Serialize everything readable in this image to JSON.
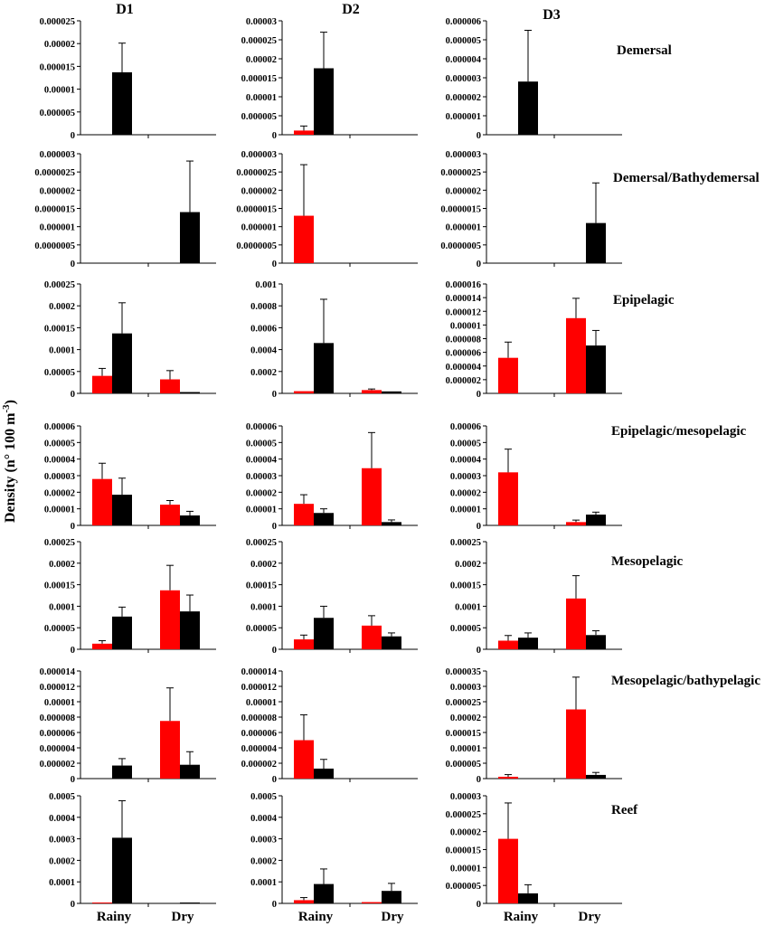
{
  "figure": {
    "ylabel_main": "Density (n° 100 m",
    "ylabel_sup": "-3",
    "ylabel_close": ")",
    "columns": [
      "D1",
      "D2",
      "D3"
    ],
    "categories": [
      "Rainy",
      "Dry"
    ],
    "rows": [
      "Demersal",
      "Demersal/Bathydemersal",
      "Epipelagic",
      "Epipelagic/mesopelagic",
      "Mesopelagic",
      "Mesopelagic/bathypelagic",
      "Reef"
    ],
    "colors": {
      "red": "#ff0000",
      "black": "#000000"
    }
  },
  "chart_data": [
    {
      "type": "bar",
      "row": "Demersal",
      "column": "D1",
      "categories": [
        "Rainy",
        "Dry"
      ],
      "series": [
        {
          "name": "red",
          "values": [
            0,
            0
          ],
          "errors": [
            0,
            0
          ]
        },
        {
          "name": "black",
          "values": [
            1.37e-05,
            0
          ],
          "errors": [
            6.4e-06,
            0
          ]
        }
      ],
      "ylim": [
        0,
        2.5e-05
      ],
      "yticks": [
        "0",
        "0.000005",
        "0.00001",
        "0.000015",
        "0.00002",
        "0.000025"
      ]
    },
    {
      "type": "bar",
      "row": "Demersal",
      "column": "D2",
      "categories": [
        "Rainy",
        "Dry"
      ],
      "series": [
        {
          "name": "red",
          "values": [
            1.1e-06,
            0
          ],
          "errors": [
            1.2e-06,
            0
          ]
        },
        {
          "name": "black",
          "values": [
            1.75e-05,
            0
          ],
          "errors": [
            9.5e-06,
            0
          ]
        }
      ],
      "ylim": [
        0,
        3e-05
      ],
      "yticks": [
        "0",
        "0.000005",
        "0.00001",
        "0.000015",
        "0.00002",
        "0.000025",
        "0.00003"
      ]
    },
    {
      "type": "bar",
      "row": "Demersal",
      "column": "D3",
      "categories": [
        "Rainy",
        "Dry"
      ],
      "series": [
        {
          "name": "red",
          "values": [
            0,
            0
          ],
          "errors": [
            0,
            0
          ]
        },
        {
          "name": "black",
          "values": [
            2.8e-06,
            0
          ],
          "errors": [
            2.7e-06,
            0
          ]
        }
      ],
      "ylim": [
        0,
        6e-06
      ],
      "yticks": [
        "0",
        "0.000001",
        "0.000002",
        "0.000003",
        "0.000004",
        "0.000005",
        "0.000006"
      ]
    },
    {
      "type": "bar",
      "row": "Demersal/Bathydemersal",
      "column": "D1",
      "categories": [
        "Rainy",
        "Dry"
      ],
      "series": [
        {
          "name": "red",
          "values": [
            0,
            0
          ],
          "errors": [
            0,
            0
          ]
        },
        {
          "name": "black",
          "values": [
            0,
            1.4e-06
          ],
          "errors": [
            0,
            1.4e-06
          ]
        }
      ],
      "ylim": [
        0,
        3e-06
      ],
      "yticks": [
        "0",
        "0.0000005",
        "0.000001",
        "0.0000015",
        "0.000002",
        "0.0000025",
        "0.000003"
      ]
    },
    {
      "type": "bar",
      "row": "Demersal/Bathydemersal",
      "column": "D2",
      "categories": [
        "Rainy",
        "Dry"
      ],
      "series": [
        {
          "name": "red",
          "values": [
            1.3e-06,
            0
          ],
          "errors": [
            1.4e-06,
            0
          ]
        },
        {
          "name": "black",
          "values": [
            0,
            0
          ],
          "errors": [
            0,
            0
          ]
        }
      ],
      "ylim": [
        0,
        3e-06
      ],
      "yticks": [
        "0",
        "0.0000005",
        "0.000001",
        "0.0000015",
        "0.000002",
        "0.0000025",
        "0.000003"
      ]
    },
    {
      "type": "bar",
      "row": "Demersal/Bathydemersal",
      "column": "D3",
      "categories": [
        "Rainy",
        "Dry"
      ],
      "series": [
        {
          "name": "red",
          "values": [
            0,
            0
          ],
          "errors": [
            0,
            0
          ]
        },
        {
          "name": "black",
          "values": [
            0,
            1.1e-06
          ],
          "errors": [
            0,
            1.1e-06
          ]
        }
      ],
      "ylim": [
        0,
        3e-06
      ],
      "yticks": [
        "0",
        "0.0000005",
        "0.000001",
        "0.0000015",
        "0.000002",
        "0.0000025",
        "0.000003"
      ]
    },
    {
      "type": "bar",
      "row": "Epipelagic",
      "column": "D1",
      "categories": [
        "Rainy",
        "Dry"
      ],
      "series": [
        {
          "name": "red",
          "values": [
            4e-05,
            3.2e-05
          ],
          "errors": [
            1.7e-05,
            2e-05
          ]
        },
        {
          "name": "black",
          "values": [
            0.000137,
            3e-06
          ],
          "errors": [
            7e-05,
            0
          ]
        }
      ],
      "ylim": [
        0,
        0.00025
      ],
      "yticks": [
        "0",
        "0.00005",
        "0.0001",
        "0.00015",
        "0.0002",
        "0.00025"
      ]
    },
    {
      "type": "bar",
      "row": "Epipelagic",
      "column": "D2",
      "categories": [
        "Rainy",
        "Dry"
      ],
      "series": [
        {
          "name": "red",
          "values": [
            2e-05,
            3e-05
          ],
          "errors": [
            0,
            1e-05
          ]
        },
        {
          "name": "black",
          "values": [
            0.00046,
            1.8e-05
          ],
          "errors": [
            0.0004,
            0
          ]
        }
      ],
      "ylim": [
        0,
        0.001
      ],
      "yticks": [
        "0",
        "0.0002",
        "0.0004",
        "0.0006",
        "0.0008",
        "0.001"
      ]
    },
    {
      "type": "bar",
      "row": "Epipelagic",
      "column": "D3",
      "categories": [
        "Rainy",
        "Dry"
      ],
      "series": [
        {
          "name": "red",
          "values": [
            5.2e-06,
            1.1e-05
          ],
          "errors": [
            2.3e-06,
            2.9e-06
          ]
        },
        {
          "name": "black",
          "values": [
            0,
            7e-06
          ],
          "errors": [
            0,
            2.2e-06
          ]
        }
      ],
      "ylim": [
        0,
        1.6e-05
      ],
      "yticks": [
        "0",
        "0.000002",
        "0.000004",
        "0.000006",
        "0.000008",
        "0.00001",
        "0.000012",
        "0.000014",
        "0.000016"
      ]
    },
    {
      "type": "bar",
      "row": "Epipelagic/mesopelagic",
      "column": "D1",
      "categories": [
        "Rainy",
        "Dry"
      ],
      "series": [
        {
          "name": "red",
          "values": [
            2.8e-05,
            1.25e-05
          ],
          "errors": [
            9.5e-06,
            2.5e-06
          ]
        },
        {
          "name": "black",
          "values": [
            1.85e-05,
            6e-06
          ],
          "errors": [
            1e-05,
            2.5e-06
          ]
        }
      ],
      "ylim": [
        0,
        6e-05
      ],
      "yticks": [
        "0",
        "0.00001",
        "0.00002",
        "0.00003",
        "0.00004",
        "0.00005",
        "0.00006"
      ]
    },
    {
      "type": "bar",
      "row": "Epipelagic/mesopelagic",
      "column": "D2",
      "categories": [
        "Rainy",
        "Dry"
      ],
      "series": [
        {
          "name": "red",
          "values": [
            1.3e-05,
            3.45e-05
          ],
          "errors": [
            5.5e-06,
            2.15e-05
          ]
        },
        {
          "name": "black",
          "values": [
            7.5e-06,
            2e-06
          ],
          "errors": [
            2.5e-06,
            1.3e-06
          ]
        }
      ],
      "ylim": [
        0,
        6e-05
      ],
      "yticks": [
        "0",
        "0.00001",
        "0.00002",
        "0.00003",
        "0.00004",
        "0.00005",
        "0.00006"
      ]
    },
    {
      "type": "bar",
      "row": "Epipelagic/mesopelagic",
      "column": "D3",
      "categories": [
        "Rainy",
        "Dry"
      ],
      "series": [
        {
          "name": "red",
          "values": [
            3.2e-05,
            2e-06
          ],
          "errors": [
            1.4e-05,
            1.2e-06
          ]
        },
        {
          "name": "black",
          "values": [
            0,
            6.5e-06
          ],
          "errors": [
            0,
            1.5e-06
          ]
        }
      ],
      "ylim": [
        0,
        6e-05
      ],
      "yticks": [
        "0",
        "0.00001",
        "0.00002",
        "0.00003",
        "0.00004",
        "0.00005",
        "0.00006"
      ]
    },
    {
      "type": "bar",
      "row": "Mesopelagic",
      "column": "D1",
      "categories": [
        "Rainy",
        "Dry"
      ],
      "series": [
        {
          "name": "red",
          "values": [
            1.3e-05,
            0.000137
          ],
          "errors": [
            7e-06,
            5.8e-05
          ]
        },
        {
          "name": "black",
          "values": [
            7.6e-05,
            8.8e-05
          ],
          "errors": [
            2.2e-05,
            3.8e-05
          ]
        }
      ],
      "ylim": [
        0,
        0.00025
      ],
      "yticks": [
        "0",
        "0.00005",
        "0.0001",
        "0.00015",
        "0.0002",
        "0.00025"
      ]
    },
    {
      "type": "bar",
      "row": "Mesopelagic",
      "column": "D2",
      "categories": [
        "Rainy",
        "Dry"
      ],
      "series": [
        {
          "name": "red",
          "values": [
            2.3e-05,
            5.5e-05
          ],
          "errors": [
            1e-05,
            2.3e-05
          ]
        },
        {
          "name": "black",
          "values": [
            7.3e-05,
            3e-05
          ],
          "errors": [
            2.7e-05,
            8e-06
          ]
        }
      ],
      "ylim": [
        0,
        0.00025
      ],
      "yticks": [
        "0",
        "0.00005",
        "0.0001",
        "0.00015",
        "0.0002",
        "0.00025"
      ]
    },
    {
      "type": "bar",
      "row": "Mesopelagic",
      "column": "D3",
      "categories": [
        "Rainy",
        "Dry"
      ],
      "series": [
        {
          "name": "red",
          "values": [
            2e-05,
            0.000118
          ],
          "errors": [
            1.2e-05,
            5.3e-05
          ]
        },
        {
          "name": "black",
          "values": [
            2.7e-05,
            3.3e-05
          ],
          "errors": [
            1.1e-05,
            1e-05
          ]
        }
      ],
      "ylim": [
        0,
        0.00025
      ],
      "yticks": [
        "0",
        "0.00005",
        "0.0001",
        "0.00015",
        "0.0002",
        "0.00025"
      ]
    },
    {
      "type": "bar",
      "row": "Mesopelagic/bathypelagic",
      "column": "D1",
      "categories": [
        "Rainy",
        "Dry"
      ],
      "series": [
        {
          "name": "red",
          "values": [
            0,
            7.5e-06
          ],
          "errors": [
            0,
            4.3e-06
          ]
        },
        {
          "name": "black",
          "values": [
            1.7e-06,
            1.8e-06
          ],
          "errors": [
            9e-07,
            1.7e-06
          ]
        }
      ],
      "ylim": [
        0,
        1.4e-05
      ],
      "yticks": [
        "0",
        "0.000002",
        "0.000004",
        "0.000006",
        "0.000008",
        "0.00001",
        "0.000012",
        "0.000014"
      ]
    },
    {
      "type": "bar",
      "row": "Mesopelagic/bathypelagic",
      "column": "D2",
      "categories": [
        "Rainy",
        "Dry"
      ],
      "series": [
        {
          "name": "red",
          "values": [
            5e-06,
            0
          ],
          "errors": [
            3.3e-06,
            0
          ]
        },
        {
          "name": "black",
          "values": [
            1.3e-06,
            0
          ],
          "errors": [
            1.2e-06,
            0
          ]
        }
      ],
      "ylim": [
        0,
        1.4e-05
      ],
      "yticks": [
        "0",
        "0.000002",
        "0.000004",
        "0.000006",
        "0.000008",
        "0.00001",
        "0.000012",
        "0.000014"
      ]
    },
    {
      "type": "bar",
      "row": "Mesopelagic/bathypelagic",
      "column": "D3",
      "categories": [
        "Rainy",
        "Dry"
      ],
      "series": [
        {
          "name": "red",
          "values": [
            6e-07,
            2.25e-05
          ],
          "errors": [
            7e-07,
            1.05e-05
          ]
        },
        {
          "name": "black",
          "values": [
            0,
            1.2e-06
          ],
          "errors": [
            0,
            8e-07
          ]
        }
      ],
      "ylim": [
        0,
        3.5e-05
      ],
      "yticks": [
        "0",
        "0.000005",
        "0.00001",
        "0.000015",
        "0.00002",
        "0.000025",
        "0.00003",
        "0.000035"
      ]
    },
    {
      "type": "bar",
      "row": "Reef",
      "column": "D1",
      "categories": [
        "Rainy",
        "Dry"
      ],
      "series": [
        {
          "name": "red",
          "values": [
            4e-06,
            0
          ],
          "errors": [
            0,
            0
          ]
        },
        {
          "name": "black",
          "values": [
            0.000305,
            4e-06
          ],
          "errors": [
            0.000172,
            0
          ]
        }
      ],
      "ylim": [
        0,
        0.0005
      ],
      "yticks": [
        "0",
        "0.0001",
        "0.0002",
        "0.0003",
        "0.0004",
        "0.0005"
      ]
    },
    {
      "type": "bar",
      "row": "Reef",
      "column": "D2",
      "categories": [
        "Rainy",
        "Dry"
      ],
      "series": [
        {
          "name": "red",
          "values": [
            1.5e-05,
            6e-06
          ],
          "errors": [
            1.2e-05,
            0
          ]
        },
        {
          "name": "black",
          "values": [
            9e-05,
            5.8e-05
          ],
          "errors": [
            7e-05,
            3.5e-05
          ]
        }
      ],
      "ylim": [
        0,
        0.0005
      ],
      "yticks": [
        "0",
        "0.0001",
        "0.0002",
        "0.0003",
        "0.0004",
        "0.0005"
      ]
    },
    {
      "type": "bar",
      "row": "Reef",
      "column": "D3",
      "categories": [
        "Rainy",
        "Dry"
      ],
      "series": [
        {
          "name": "red",
          "values": [
            1.8e-05,
            0
          ],
          "errors": [
            1e-05,
            0
          ]
        },
        {
          "name": "black",
          "values": [
            2.8e-06,
            0
          ],
          "errors": [
            2.4e-06,
            0
          ]
        }
      ],
      "ylim": [
        0,
        3e-05
      ],
      "yticks": [
        "0",
        "0.000005",
        "0.00001",
        "0.000015",
        "0.00002",
        "0.000025",
        "0.00003"
      ]
    }
  ]
}
